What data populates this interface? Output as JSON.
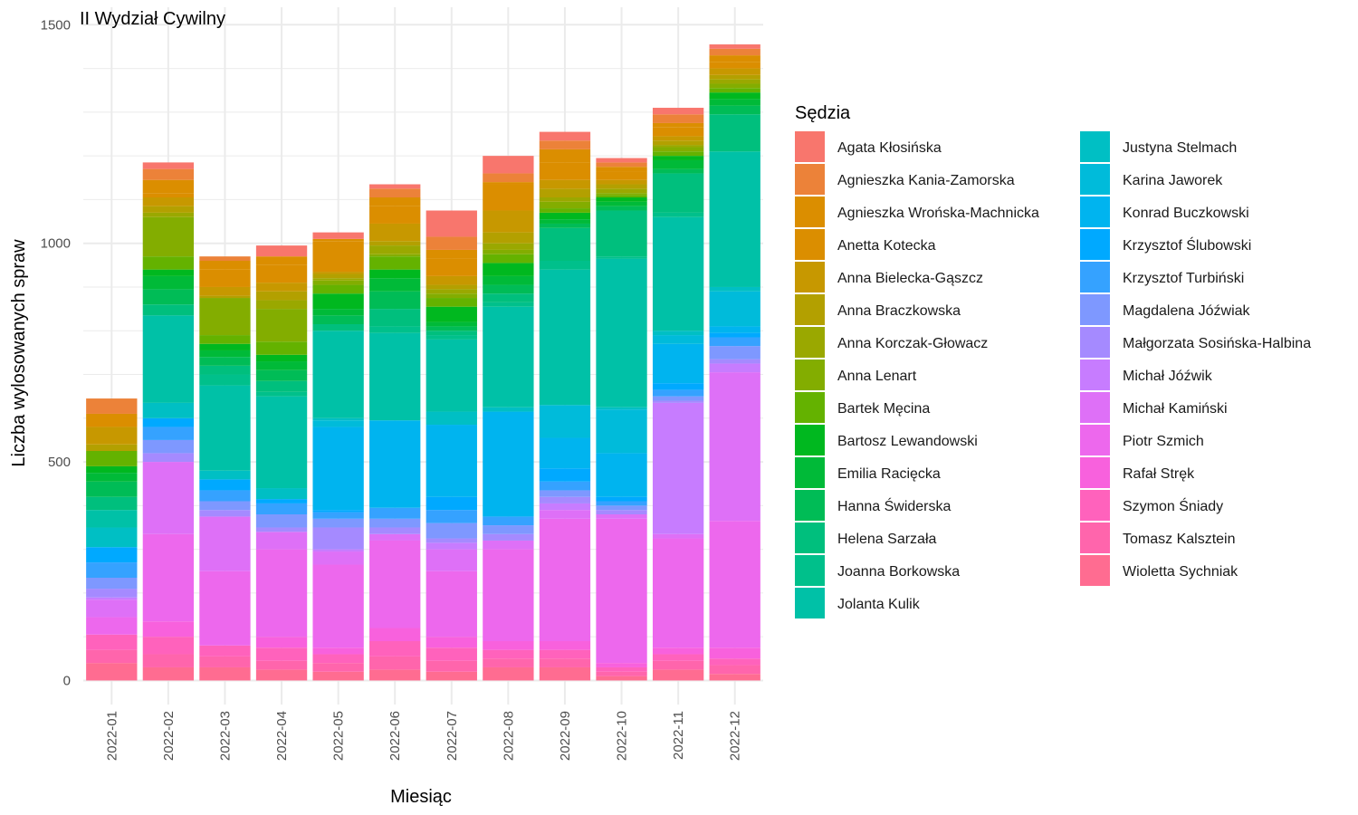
{
  "chart_data": {
    "type": "bar",
    "stacked": true,
    "title": "II Wydział Cywilny",
    "xlabel": "Miesiąc",
    "ylabel": "Liczba wylosowanych spraw",
    "ylim": [
      -55,
      1540
    ],
    "yticks": [
      0,
      500,
      1000,
      1500
    ],
    "grid": true,
    "legend_title": "Sędzia",
    "legend_position": "right",
    "categories": [
      "2022-01",
      "2022-02",
      "2022-03",
      "2022-04",
      "2022-05",
      "2022-06",
      "2022-07",
      "2022-08",
      "2022-09",
      "2022-10",
      "2022-11",
      "2022-12"
    ],
    "series": [
      {
        "name": "Agata Kłosińska",
        "color": "#F8766D",
        "values": [
          0,
          15,
          0,
          25,
          15,
          10,
          60,
          40,
          20,
          10,
          15,
          10
        ]
      },
      {
        "name": "Agnieszka Kania-Zamorska",
        "color": "#EC8239",
        "values": [
          35,
          25,
          10,
          0,
          0,
          20,
          30,
          20,
          20,
          10,
          20,
          15
        ]
      },
      {
        "name": "Agnieszka Wrońska-Machnicka",
        "color": "#DB8E00",
        "values": [
          30,
          30,
          20,
          20,
          5,
          20,
          20,
          5,
          30,
          10,
          10,
          15
        ]
      },
      {
        "name": "Anetta Kotecka",
        "color": "#DB8E00",
        "values": [
          0,
          10,
          40,
          40,
          70,
          40,
          40,
          60,
          40,
          20,
          20,
          15
        ]
      },
      {
        "name": "Anna Bielecka-Gąszcz",
        "color": "#C79800",
        "values": [
          40,
          20,
          20,
          20,
          5,
          40,
          20,
          50,
          20,
          10,
          10,
          15
        ]
      },
      {
        "name": "Anna Braczkowska",
        "color": "#B3A000",
        "values": [
          15,
          15,
          5,
          20,
          10,
          10,
          10,
          25,
          20,
          10,
          10,
          10
        ]
      },
      {
        "name": "Anna Korczak-Głowacz",
        "color": "#9AA800",
        "values": [
          0,
          10,
          0,
          20,
          5,
          20,
          10,
          15,
          10,
          10,
          5,
          10
        ]
      },
      {
        "name": "Anna Lenart",
        "color": "#83AD00",
        "values": [
          0,
          90,
          85,
          75,
          10,
          5,
          10,
          10,
          15,
          5,
          10,
          10
        ]
      },
      {
        "name": "Bartek Męcina",
        "color": "#64B200",
        "values": [
          35,
          30,
          20,
          30,
          20,
          30,
          20,
          20,
          10,
          5,
          10,
          10
        ]
      },
      {
        "name": "Bartosz Lewandowski",
        "color": "#00B81F",
        "values": [
          15,
          15,
          15,
          15,
          35,
          20,
          35,
          30,
          15,
          10,
          10,
          15
        ]
      },
      {
        "name": "Emilia Racięcka",
        "color": "#00BA38",
        "values": [
          20,
          30,
          15,
          20,
          15,
          30,
          10,
          20,
          10,
          10,
          20,
          15
        ]
      },
      {
        "name": "Hanna Świderska",
        "color": "#00BC56",
        "values": [
          35,
          35,
          20,
          25,
          20,
          40,
          10,
          20,
          10,
          10,
          10,
          20
        ]
      },
      {
        "name": "Helena Sarzała",
        "color": "#00BF7D",
        "values": [
          30,
          25,
          20,
          25,
          15,
          40,
          10,
          20,
          75,
          105,
          90,
          85
        ]
      },
      {
        "name": "Joanna Borkowska",
        "color": "#00C08B",
        "values": [
          0,
          0,
          25,
          10,
          0,
          15,
          10,
          10,
          20,
          5,
          10,
          0
        ]
      },
      {
        "name": "Jolanta Kulik",
        "color": "#00C1A7",
        "values": [
          40,
          200,
          195,
          210,
          200,
          200,
          165,
          230,
          310,
          340,
          260,
          310
        ]
      },
      {
        "name": "Justyna Stelmach",
        "color": "#00BFC4",
        "values": [
          45,
          35,
          20,
          25,
          5,
          0,
          30,
          10,
          0,
          5,
          10,
          10
        ]
      },
      {
        "name": "Karina Jaworek",
        "color": "#00BBDA",
        "values": [
          0,
          0,
          0,
          0,
          15,
          0,
          0,
          0,
          75,
          100,
          20,
          80
        ]
      },
      {
        "name": "Konrad Buczkowski",
        "color": "#00B4EF",
        "values": [
          0,
          0,
          0,
          0,
          190,
          200,
          165,
          240,
          70,
          100,
          90,
          15
        ]
      },
      {
        "name": "Krzysztof Ślubowski",
        "color": "#00A9FF",
        "values": [
          35,
          20,
          25,
          10,
          5,
          0,
          30,
          0,
          30,
          10,
          15,
          10
        ]
      },
      {
        "name": "Krzysztof Turbiński",
        "color": "#35A2FF",
        "values": [
          35,
          30,
          25,
          25,
          15,
          25,
          30,
          20,
          20,
          10,
          15,
          20
        ]
      },
      {
        "name": "Magdalena Jóźwiak",
        "color": "#7E98FF",
        "values": [
          25,
          30,
          20,
          30,
          20,
          20,
          35,
          20,
          15,
          10,
          10,
          30
        ]
      },
      {
        "name": "Małgorzata Sosińska-Halbina",
        "color": "#A58AFF",
        "values": [
          20,
          20,
          15,
          10,
          50,
          15,
          10,
          15,
          15,
          10,
          5,
          10
        ]
      },
      {
        "name": "Michał Jóźwik",
        "color": "#C77CFF",
        "values": [
          5,
          0,
          0,
          0,
          5,
          0,
          15,
          0,
          15,
          0,
          300,
          20
        ]
      },
      {
        "name": "Michał Kamiński",
        "color": "#DE70F7",
        "values": [
          40,
          165,
          125,
          40,
          30,
          15,
          50,
          20,
          20,
          10,
          10,
          340
        ]
      },
      {
        "name": "Piotr Szmich",
        "color": "#ED68ED",
        "values": [
          40,
          200,
          170,
          200,
          190,
          200,
          150,
          210,
          280,
          330,
          250,
          290
        ]
      },
      {
        "name": "Rafał Stręk",
        "color": "#F861DD",
        "values": [
          0,
          35,
          0,
          25,
          15,
          30,
          25,
          20,
          20,
          10,
          15,
          25
        ]
      },
      {
        "name": "Szymon Śniady",
        "color": "#FF62BC",
        "values": [
          35,
          40,
          25,
          30,
          20,
          35,
          30,
          20,
          20,
          10,
          15,
          15
        ]
      },
      {
        "name": "Tomasz Kalsztein",
        "color": "#FF65AC",
        "values": [
          30,
          30,
          25,
          20,
          20,
          30,
          25,
          20,
          20,
          10,
          20,
          20
        ]
      },
      {
        "name": "Wioletta Sychniak",
        "color": "#FF6C91",
        "values": [
          40,
          30,
          30,
          25,
          20,
          25,
          20,
          30,
          30,
          10,
          25,
          15
        ]
      }
    ]
  }
}
